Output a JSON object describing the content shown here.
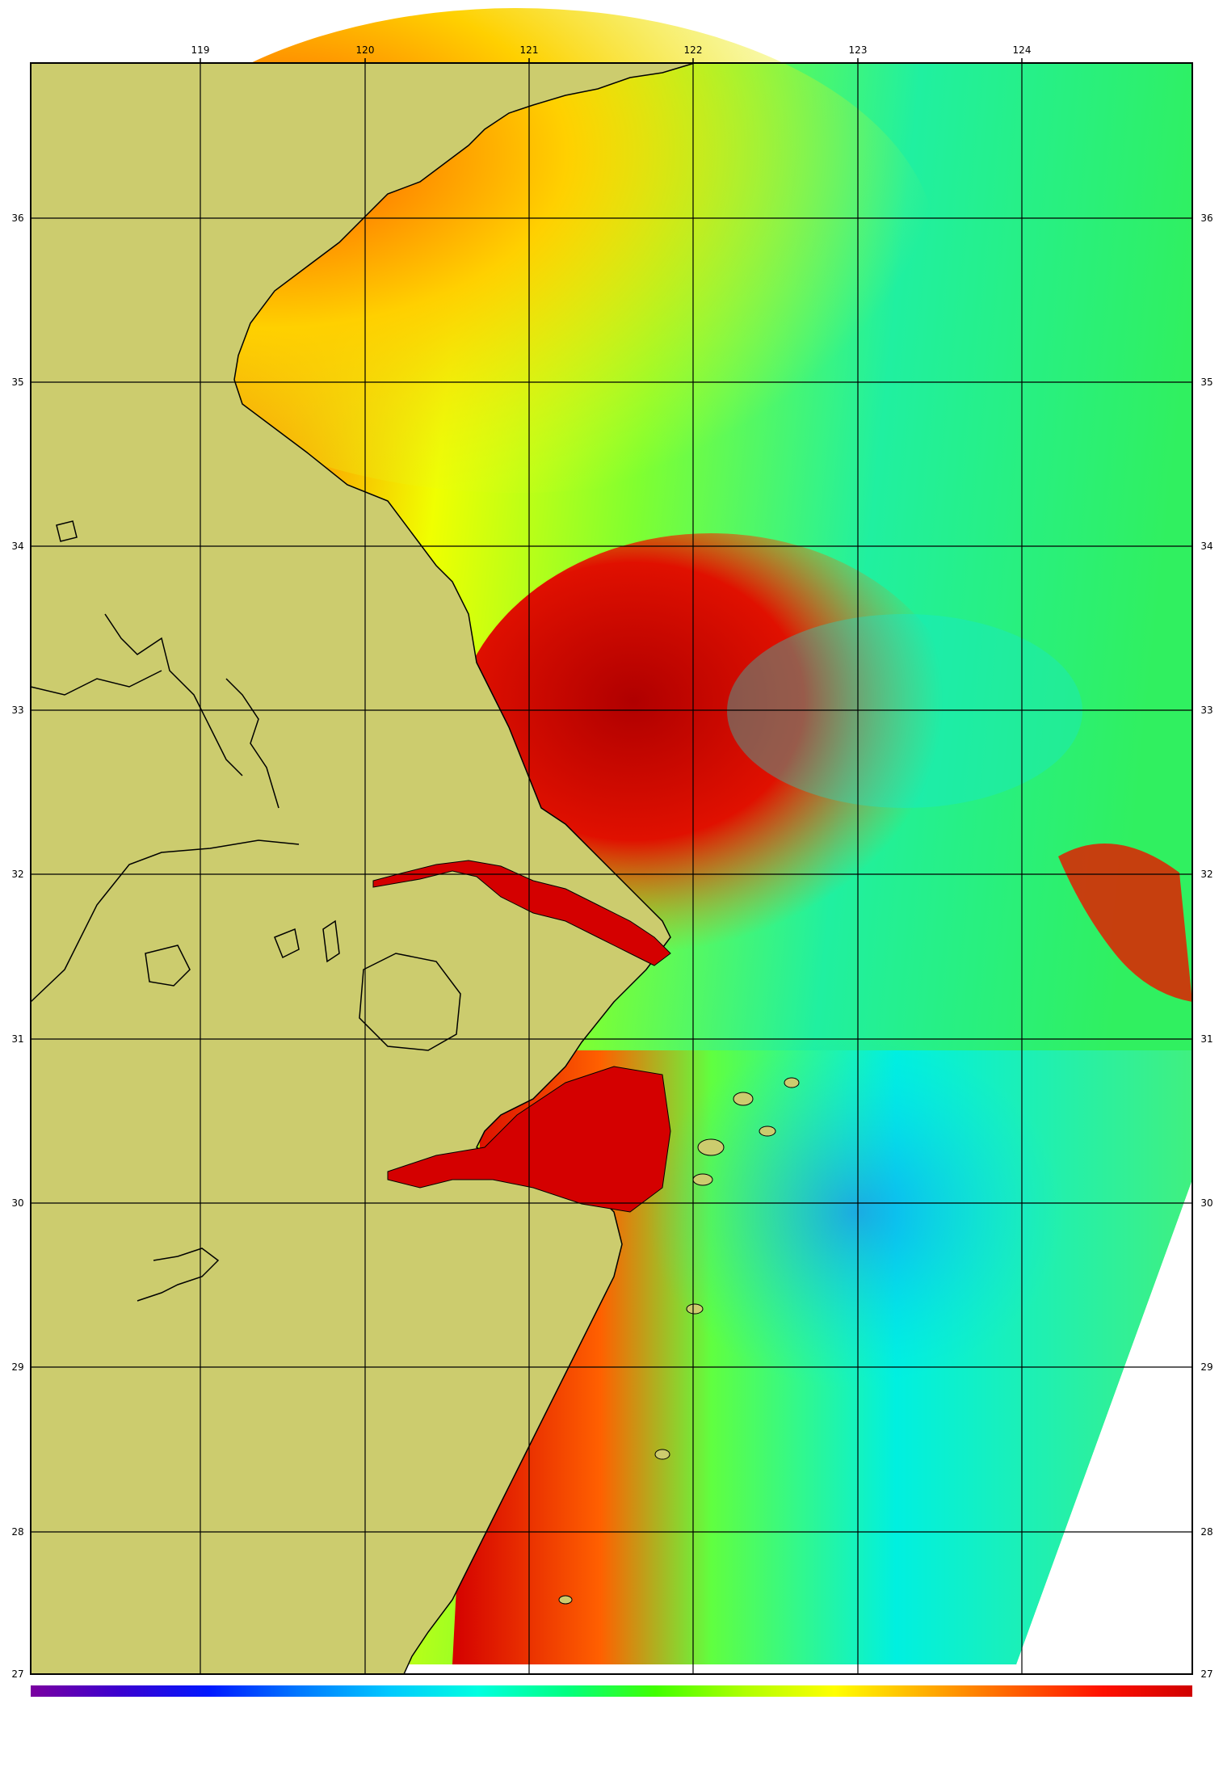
{
  "map": {
    "lon_labels": [
      "119",
      "120",
      "121",
      "122",
      "123",
      "124"
    ],
    "lat_labels": [
      "36",
      "35",
      "34",
      "33",
      "32",
      "31",
      "30",
      "29",
      "28",
      "27"
    ],
    "colors": {
      "land": "#cccc6e",
      "coastline": "#000000",
      "gridline": "#000000",
      "no_data": "#ffffff",
      "turbid_high": "#d60000",
      "turbid_mid": "#ff7a00",
      "turbid_low": "#ffe600",
      "clear_mid": "#7cff3a",
      "clear": "#00e6d8",
      "clearest": "#1040ff"
    },
    "colorbar": {
      "colors": [
        "#7a00a0",
        "#3a00d0",
        "#0018ff",
        "#0078ff",
        "#00c8ff",
        "#00ffe0",
        "#00ff80",
        "#40ff00",
        "#b0ff00",
        "#ffff00",
        "#ffb000",
        "#ff6000",
        "#ff1000",
        "#d00000"
      ]
    }
  }
}
